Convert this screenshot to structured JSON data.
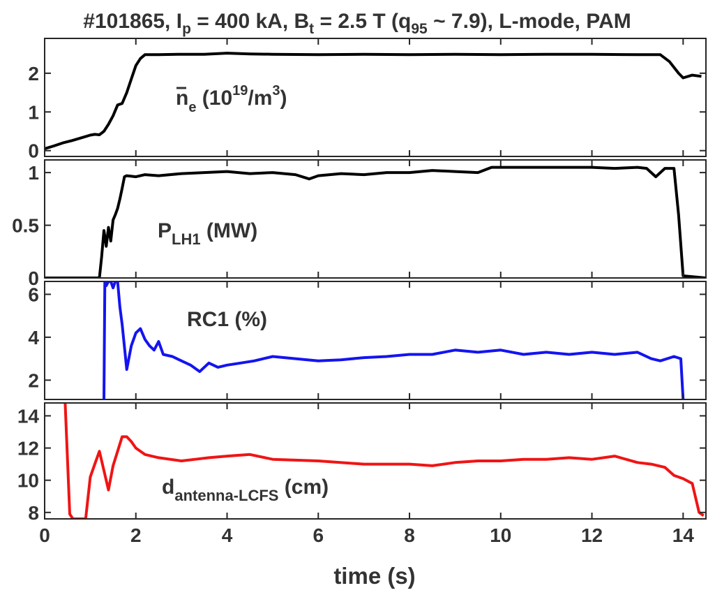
{
  "figure": {
    "title": "#101865, I",
    "title_parts": [
      "#101865, I",
      "p",
      " = 400 kA, B",
      "t",
      " = 2.5 T (q",
      "95",
      " ~ 7.9), L-mode, PAM"
    ],
    "xlabel": "time (s)"
  },
  "chart_data": [
    {
      "type": "line",
      "label_parts": [
        "n",
        "e",
        " (10",
        "19",
        "/m",
        "3",
        ")"
      ],
      "xlim": [
        0,
        14.5
      ],
      "ylim": [
        -0.15,
        2.9
      ],
      "yticks": [
        "0",
        "1",
        "2"
      ],
      "ytick_values": [
        0,
        1,
        2
      ],
      "color": "#000000",
      "x": [
        0,
        0.2,
        0.4,
        0.6,
        0.8,
        1.0,
        1.1,
        1.2,
        1.3,
        1.4,
        1.5,
        1.6,
        1.7,
        1.8,
        1.9,
        2.0,
        2.1,
        2.2,
        2.5,
        3.0,
        3.5,
        4.0,
        4.5,
        5.0,
        6.0,
        7.0,
        8.0,
        9.0,
        10.0,
        11.0,
        12.0,
        13.0,
        13.5,
        13.7,
        13.9,
        14.0,
        14.2,
        14.4
      ],
      "y": [
        0.05,
        0.12,
        0.2,
        0.26,
        0.33,
        0.4,
        0.42,
        0.41,
        0.5,
        0.68,
        0.9,
        1.18,
        1.22,
        1.5,
        1.85,
        2.2,
        2.38,
        2.48,
        2.48,
        2.49,
        2.49,
        2.52,
        2.5,
        2.49,
        2.48,
        2.49,
        2.48,
        2.49,
        2.48,
        2.49,
        2.49,
        2.48,
        2.48,
        2.3,
        2.0,
        1.88,
        1.95,
        1.92
      ]
    },
    {
      "type": "line",
      "label_parts": [
        "P",
        "LH1",
        " (MW)"
      ],
      "xlim": [
        0,
        14.5
      ],
      "ylim": [
        0,
        1.12
      ],
      "yticks": [
        "0",
        "0.5",
        "1"
      ],
      "ytick_values": [
        0,
        0.5,
        1
      ],
      "color": "#000000",
      "x": [
        0,
        1.2,
        1.25,
        1.3,
        1.35,
        1.4,
        1.45,
        1.5,
        1.55,
        1.6,
        1.65,
        1.7,
        1.75,
        1.8,
        2.0,
        2.2,
        2.5,
        3.0,
        3.5,
        4.0,
        4.5,
        5.0,
        5.5,
        5.8,
        6.0,
        6.5,
        7.0,
        7.5,
        8.0,
        8.5,
        9.0,
        9.5,
        9.8,
        10.5,
        11.0,
        11.5,
        12.0,
        12.5,
        13.0,
        13.2,
        13.4,
        13.6,
        13.8,
        13.9,
        14.0,
        14.5
      ],
      "y": [
        0,
        0,
        0.2,
        0.45,
        0.3,
        0.48,
        0.35,
        0.55,
        0.6,
        0.66,
        0.75,
        0.85,
        0.96,
        0.97,
        0.96,
        0.98,
        0.97,
        0.99,
        1.0,
        1.01,
        0.99,
        1.0,
        0.98,
        0.94,
        0.97,
        0.99,
        0.98,
        1.0,
        1.0,
        1.02,
        1.01,
        1.0,
        1.05,
        1.05,
        1.05,
        1.05,
        1.05,
        1.04,
        1.05,
        1.04,
        0.96,
        1.04,
        1.04,
        0.6,
        0.02,
        0
      ]
    },
    {
      "type": "line",
      "label_parts": [
        "RC1 (%)"
      ],
      "xlim": [
        0,
        14.5
      ],
      "ylim": [
        1.1,
        6.6
      ],
      "yticks": [
        "2",
        "4",
        "6"
      ],
      "ytick_values": [
        2,
        4,
        6
      ],
      "color": "#1414f0",
      "x": [
        1.3,
        1.32,
        1.35,
        1.4,
        1.45,
        1.5,
        1.55,
        1.6,
        1.65,
        1.7,
        1.8,
        1.9,
        2.0,
        2.1,
        2.2,
        2.3,
        2.4,
        2.5,
        2.6,
        2.8,
        3.0,
        3.2,
        3.4,
        3.6,
        3.8,
        4.0,
        4.3,
        4.6,
        5.0,
        5.5,
        6.0,
        6.5,
        7.0,
        7.5,
        8.0,
        8.5,
        9.0,
        9.5,
        10.0,
        10.5,
        11.0,
        11.5,
        12.0,
        12.5,
        13.0,
        13.3,
        13.5,
        13.8,
        13.95,
        14.0
      ],
      "y": [
        1.1,
        6.6,
        6.4,
        6.6,
        6.6,
        6.3,
        6.6,
        6.6,
        5.4,
        4.6,
        2.5,
        3.6,
        4.2,
        4.4,
        3.9,
        3.6,
        3.4,
        3.8,
        3.2,
        3.1,
        2.9,
        2.7,
        2.4,
        2.8,
        2.6,
        2.7,
        2.8,
        2.9,
        3.1,
        3.0,
        2.9,
        2.95,
        3.05,
        3.1,
        3.2,
        3.2,
        3.4,
        3.3,
        3.4,
        3.2,
        3.3,
        3.2,
        3.3,
        3.2,
        3.3,
        3.0,
        2.9,
        3.1,
        3.0,
        1.1
      ]
    },
    {
      "type": "line",
      "label_parts": [
        "d",
        "antenna-LCFS",
        " (cm)"
      ],
      "xlim": [
        0,
        14.5
      ],
      "ylim": [
        7.6,
        14.8
      ],
      "yticks": [
        "8",
        "10",
        "12",
        "14"
      ],
      "ytick_values": [
        8,
        10,
        12,
        14
      ],
      "color": "#f01414",
      "x": [
        0.45,
        0.55,
        0.62,
        0.7,
        0.8,
        0.9,
        1.0,
        1.1,
        1.2,
        1.3,
        1.4,
        1.5,
        1.6,
        1.7,
        1.8,
        1.9,
        2.0,
        2.2,
        2.5,
        3.0,
        3.3,
        3.6,
        4.0,
        4.5,
        5.0,
        6.0,
        7.0,
        8.0,
        8.5,
        9.0,
        9.5,
        10.0,
        10.5,
        11.0,
        11.5,
        12.0,
        12.5,
        13.0,
        13.3,
        13.6,
        13.8,
        14.0,
        14.2,
        14.35,
        14.45
      ],
      "y": [
        14.8,
        7.9,
        7.6,
        7.6,
        7.6,
        7.6,
        10.2,
        11.0,
        11.8,
        10.6,
        9.4,
        10.9,
        11.8,
        12.7,
        12.7,
        12.4,
        12.0,
        11.6,
        11.4,
        11.2,
        11.3,
        11.4,
        11.5,
        11.6,
        11.3,
        11.2,
        11.0,
        11.0,
        10.9,
        11.1,
        11.2,
        11.2,
        11.3,
        11.3,
        11.4,
        11.3,
        11.5,
        11.1,
        11.0,
        10.8,
        10.3,
        10.1,
        9.8,
        8.0,
        7.8
      ]
    }
  ],
  "xaxis": {
    "ticks": [
      "0",
      "2",
      "4",
      "6",
      "8",
      "10",
      "12",
      "14"
    ],
    "tick_values": [
      0,
      2,
      4,
      6,
      8,
      10,
      12,
      14
    ]
  }
}
